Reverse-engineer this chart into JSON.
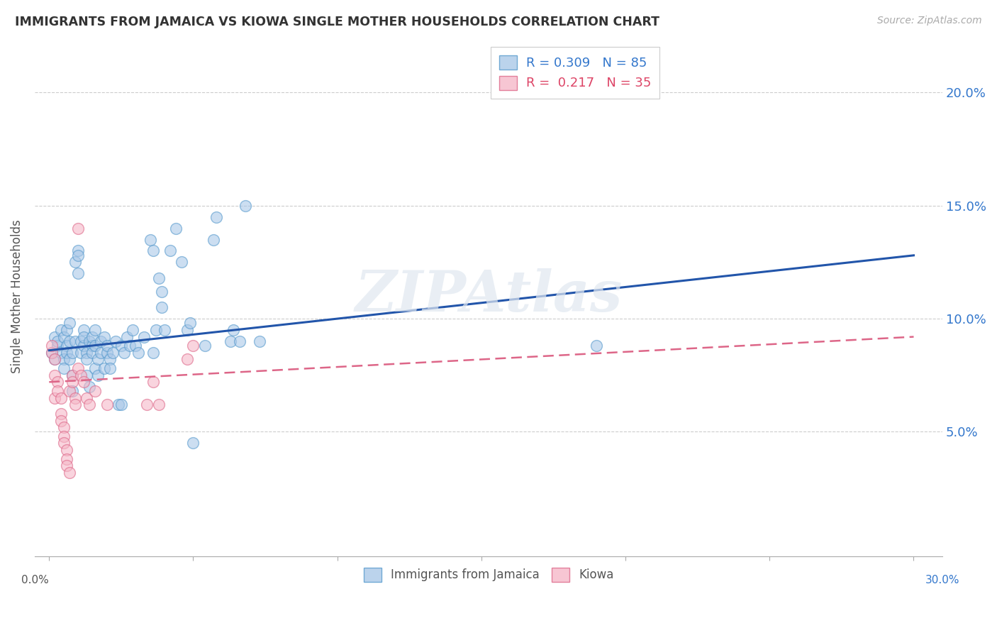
{
  "title": "IMMIGRANTS FROM JAMAICA VS KIOWA SINGLE MOTHER HOUSEHOLDS CORRELATION CHART",
  "source": "Source: ZipAtlas.com",
  "ylabel": "Single Mother Households",
  "ytick_vals": [
    0.05,
    0.1,
    0.15,
    0.2
  ],
  "ytick_labels": [
    "5.0%",
    "10.0%",
    "15.0%",
    "20.0%"
  ],
  "xlim": [
    -0.005,
    0.31
  ],
  "ylim": [
    -0.005,
    0.225
  ],
  "watermark": "ZIPAtlas",
  "blue_color": "#aac8e8",
  "blue_edge_color": "#5599cc",
  "pink_color": "#f5b8c8",
  "pink_edge_color": "#dd6688",
  "blue_line_color": "#2255aa",
  "pink_line_color": "#dd6688",
  "blue_scatter": [
    [
      0.001,
      0.085
    ],
    [
      0.002,
      0.082
    ],
    [
      0.002,
      0.092
    ],
    [
      0.003,
      0.088
    ],
    [
      0.003,
      0.09
    ],
    [
      0.004,
      0.095
    ],
    [
      0.004,
      0.085
    ],
    [
      0.005,
      0.082
    ],
    [
      0.005,
      0.078
    ],
    [
      0.005,
      0.092
    ],
    [
      0.006,
      0.095
    ],
    [
      0.006,
      0.088
    ],
    [
      0.006,
      0.085
    ],
    [
      0.007,
      0.082
    ],
    [
      0.007,
      0.09
    ],
    [
      0.007,
      0.098
    ],
    [
      0.008,
      0.085
    ],
    [
      0.008,
      0.068
    ],
    [
      0.008,
      0.075
    ],
    [
      0.009,
      0.09
    ],
    [
      0.009,
      0.125
    ],
    [
      0.01,
      0.13
    ],
    [
      0.01,
      0.12
    ],
    [
      0.01,
      0.128
    ],
    [
      0.011,
      0.09
    ],
    [
      0.011,
      0.085
    ],
    [
      0.012,
      0.095
    ],
    [
      0.012,
      0.088
    ],
    [
      0.012,
      0.092
    ],
    [
      0.013,
      0.085
    ],
    [
      0.013,
      0.075
    ],
    [
      0.013,
      0.082
    ],
    [
      0.014,
      0.09
    ],
    [
      0.014,
      0.07
    ],
    [
      0.015,
      0.088
    ],
    [
      0.015,
      0.092
    ],
    [
      0.015,
      0.085
    ],
    [
      0.016,
      0.078
    ],
    [
      0.016,
      0.095
    ],
    [
      0.016,
      0.088
    ],
    [
      0.017,
      0.082
    ],
    [
      0.017,
      0.075
    ],
    [
      0.018,
      0.09
    ],
    [
      0.018,
      0.085
    ],
    [
      0.019,
      0.078
    ],
    [
      0.019,
      0.092
    ],
    [
      0.02,
      0.085
    ],
    [
      0.02,
      0.088
    ],
    [
      0.021,
      0.082
    ],
    [
      0.021,
      0.078
    ],
    [
      0.022,
      0.085
    ],
    [
      0.023,
      0.09
    ],
    [
      0.024,
      0.062
    ],
    [
      0.025,
      0.062
    ],
    [
      0.025,
      0.088
    ],
    [
      0.026,
      0.085
    ],
    [
      0.027,
      0.092
    ],
    [
      0.028,
      0.088
    ],
    [
      0.029,
      0.095
    ],
    [
      0.03,
      0.088
    ],
    [
      0.031,
      0.085
    ],
    [
      0.033,
      0.092
    ],
    [
      0.035,
      0.135
    ],
    [
      0.036,
      0.13
    ],
    [
      0.036,
      0.085
    ],
    [
      0.037,
      0.095
    ],
    [
      0.038,
      0.118
    ],
    [
      0.039,
      0.112
    ],
    [
      0.039,
      0.105
    ],
    [
      0.04,
      0.095
    ],
    [
      0.042,
      0.13
    ],
    [
      0.044,
      0.14
    ],
    [
      0.046,
      0.125
    ],
    [
      0.048,
      0.095
    ],
    [
      0.049,
      0.098
    ],
    [
      0.05,
      0.045
    ],
    [
      0.054,
      0.088
    ],
    [
      0.057,
      0.135
    ],
    [
      0.058,
      0.145
    ],
    [
      0.063,
      0.09
    ],
    [
      0.064,
      0.095
    ],
    [
      0.066,
      0.09
    ],
    [
      0.068,
      0.15
    ],
    [
      0.073,
      0.09
    ],
    [
      0.19,
      0.088
    ]
  ],
  "pink_scatter": [
    [
      0.001,
      0.085
    ],
    [
      0.001,
      0.088
    ],
    [
      0.002,
      0.082
    ],
    [
      0.002,
      0.075
    ],
    [
      0.002,
      0.065
    ],
    [
      0.003,
      0.072
    ],
    [
      0.003,
      0.068
    ],
    [
      0.004,
      0.065
    ],
    [
      0.004,
      0.058
    ],
    [
      0.004,
      0.055
    ],
    [
      0.005,
      0.052
    ],
    [
      0.005,
      0.048
    ],
    [
      0.005,
      0.045
    ],
    [
      0.006,
      0.042
    ],
    [
      0.006,
      0.038
    ],
    [
      0.006,
      0.035
    ],
    [
      0.007,
      0.032
    ],
    [
      0.007,
      0.068
    ],
    [
      0.008,
      0.075
    ],
    [
      0.008,
      0.072
    ],
    [
      0.009,
      0.065
    ],
    [
      0.009,
      0.062
    ],
    [
      0.01,
      0.14
    ],
    [
      0.01,
      0.078
    ],
    [
      0.011,
      0.075
    ],
    [
      0.012,
      0.072
    ],
    [
      0.013,
      0.065
    ],
    [
      0.014,
      0.062
    ],
    [
      0.016,
      0.068
    ],
    [
      0.02,
      0.062
    ],
    [
      0.034,
      0.062
    ],
    [
      0.036,
      0.072
    ],
    [
      0.038,
      0.062
    ],
    [
      0.048,
      0.082
    ],
    [
      0.05,
      0.088
    ]
  ],
  "blue_line": {
    "x0": 0.0,
    "x1": 0.3,
    "y0": 0.086,
    "y1": 0.128
  },
  "pink_line": {
    "x0": 0.0,
    "x1": 0.3,
    "y0": 0.072,
    "y1": 0.092
  }
}
